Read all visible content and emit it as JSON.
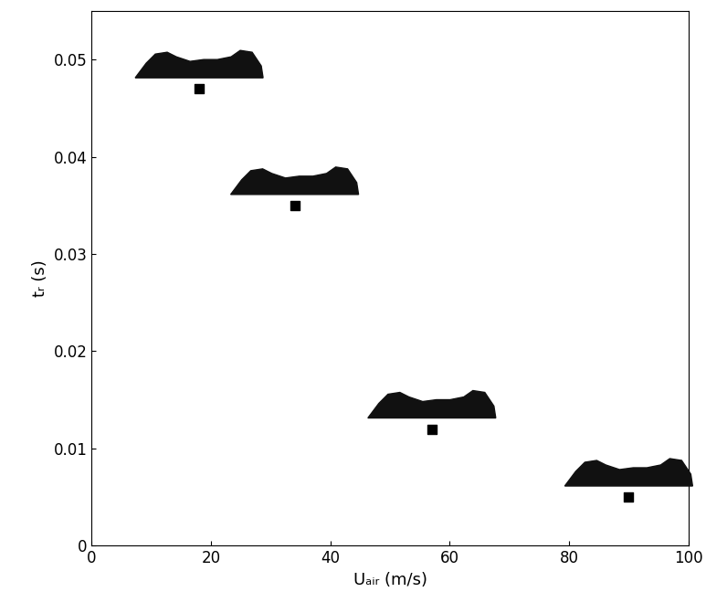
{
  "chart_data": {
    "type": "scatter",
    "x_label": "Uₐᵢᵣ (m/s)",
    "y_label": "tᵣ (s)",
    "x": [
      18,
      34,
      57,
      90
    ],
    "values": [
      0.047,
      0.035,
      0.012,
      0.005
    ],
    "color": "#000000",
    "marker": "square",
    "xlim": [
      0,
      100
    ],
    "xticks": [
      0,
      20,
      40,
      60,
      80,
      100
    ],
    "ylim": [
      0,
      0.055
    ],
    "yticks": [
      0,
      0.01,
      0.02,
      0.03,
      0.04,
      0.05
    ],
    "grid": false
  }
}
